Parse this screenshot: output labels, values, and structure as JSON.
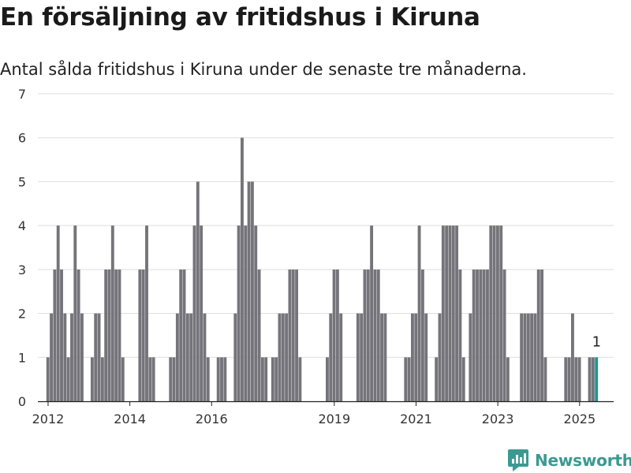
{
  "title": "En försäljning av fritidshus i Kiruna",
  "subtitle": "Antal sålda fritidshus i Kiruna under de senaste tre månaderna.",
  "brand": "Newsworthy",
  "colors": {
    "bar": "#75747a",
    "highlight": "#159a8c",
    "grid": "#dddddd",
    "brand": "#3a9a92"
  },
  "chart_data": {
    "type": "bar",
    "title": "En försäljning av fritidshus i Kiruna",
    "subtitle": "Antal sålda fritidshus i Kiruna under de senaste tre månaderna.",
    "xlabel": "",
    "ylabel": "",
    "ylim": [
      0,
      7
    ],
    "x_range": [
      "2011-10",
      "2025-11"
    ],
    "y_ticks": [
      0,
      1,
      2,
      3,
      4,
      5,
      6,
      7
    ],
    "x_ticks": [
      "2012",
      "2014",
      "2016",
      "2019",
      "2021",
      "2023",
      "2025"
    ],
    "grid": true,
    "series": [
      {
        "values": [
          [
            "2012-01",
            1
          ],
          [
            "2012-02",
            2
          ],
          [
            "2012-03",
            3
          ],
          [
            "2012-04",
            4
          ],
          [
            "2012-05",
            3
          ],
          [
            "2012-06",
            2
          ],
          [
            "2012-07",
            1
          ],
          [
            "2012-08",
            2
          ],
          [
            "2012-09",
            4
          ],
          [
            "2012-10",
            3
          ],
          [
            "2012-11",
            2
          ],
          [
            "2013-02",
            1
          ],
          [
            "2013-03",
            2
          ],
          [
            "2013-04",
            2
          ],
          [
            "2013-05",
            1
          ],
          [
            "2013-06",
            3
          ],
          [
            "2013-07",
            3
          ],
          [
            "2013-08",
            4
          ],
          [
            "2013-09",
            3
          ],
          [
            "2013-10",
            3
          ],
          [
            "2013-11",
            1
          ],
          [
            "2014-04",
            3
          ],
          [
            "2014-05",
            3
          ],
          [
            "2014-06",
            4
          ],
          [
            "2014-07",
            1
          ],
          [
            "2014-08",
            1
          ],
          [
            "2015-01",
            1
          ],
          [
            "2015-02",
            1
          ],
          [
            "2015-03",
            2
          ],
          [
            "2015-04",
            3
          ],
          [
            "2015-05",
            3
          ],
          [
            "2015-06",
            2
          ],
          [
            "2015-07",
            2
          ],
          [
            "2015-08",
            4
          ],
          [
            "2015-09",
            5
          ],
          [
            "2015-10",
            4
          ],
          [
            "2015-11",
            2
          ],
          [
            "2015-12",
            1
          ],
          [
            "2016-03",
            1
          ],
          [
            "2016-04",
            1
          ],
          [
            "2016-05",
            1
          ],
          [
            "2016-08",
            2
          ],
          [
            "2016-09",
            4
          ],
          [
            "2016-10",
            6
          ],
          [
            "2016-11",
            4
          ],
          [
            "2016-12",
            5
          ],
          [
            "2017-01",
            5
          ],
          [
            "2017-02",
            4
          ],
          [
            "2017-03",
            3
          ],
          [
            "2017-04",
            1
          ],
          [
            "2017-05",
            1
          ],
          [
            "2017-07",
            1
          ],
          [
            "2017-08",
            1
          ],
          [
            "2017-09",
            2
          ],
          [
            "2017-10",
            2
          ],
          [
            "2017-11",
            2
          ],
          [
            "2017-12",
            3
          ],
          [
            "2018-01",
            3
          ],
          [
            "2018-02",
            3
          ],
          [
            "2018-03",
            1
          ],
          [
            "2018-11",
            1
          ],
          [
            "2018-12",
            2
          ],
          [
            "2019-01",
            3
          ],
          [
            "2019-02",
            3
          ],
          [
            "2019-03",
            2
          ],
          [
            "2019-08",
            2
          ],
          [
            "2019-09",
            2
          ],
          [
            "2019-10",
            3
          ],
          [
            "2019-11",
            3
          ],
          [
            "2019-12",
            4
          ],
          [
            "2020-01",
            3
          ],
          [
            "2020-02",
            3
          ],
          [
            "2020-03",
            2
          ],
          [
            "2020-04",
            2
          ],
          [
            "2020-10",
            1
          ],
          [
            "2020-11",
            1
          ],
          [
            "2020-12",
            2
          ],
          [
            "2021-01",
            2
          ],
          [
            "2021-02",
            4
          ],
          [
            "2021-03",
            3
          ],
          [
            "2021-04",
            2
          ],
          [
            "2021-07",
            1
          ],
          [
            "2021-08",
            2
          ],
          [
            "2021-09",
            4
          ],
          [
            "2021-10",
            4
          ],
          [
            "2021-11",
            4
          ],
          [
            "2021-12",
            4
          ],
          [
            "2022-01",
            4
          ],
          [
            "2022-02",
            3
          ],
          [
            "2022-03",
            1
          ],
          [
            "2022-05",
            2
          ],
          [
            "2022-06",
            3
          ],
          [
            "2022-07",
            3
          ],
          [
            "2022-08",
            3
          ],
          [
            "2022-09",
            3
          ],
          [
            "2022-10",
            3
          ],
          [
            "2022-11",
            4
          ],
          [
            "2022-12",
            4
          ],
          [
            "2023-01",
            4
          ],
          [
            "2023-02",
            4
          ],
          [
            "2023-03",
            3
          ],
          [
            "2023-04",
            1
          ],
          [
            "2023-08",
            2
          ],
          [
            "2023-09",
            2
          ],
          [
            "2023-10",
            2
          ],
          [
            "2023-11",
            2
          ],
          [
            "2023-12",
            2
          ],
          [
            "2024-01",
            3
          ],
          [
            "2024-02",
            3
          ],
          [
            "2024-03",
            1
          ],
          [
            "2024-09",
            1
          ],
          [
            "2024-10",
            1
          ],
          [
            "2024-11",
            2
          ],
          [
            "2024-12",
            1
          ],
          [
            "2025-01",
            1
          ],
          [
            "2025-04",
            1
          ],
          [
            "2025-05",
            1
          ],
          [
            "2025-06",
            1
          ]
        ]
      }
    ],
    "highlight": {
      "x": "2025-06",
      "value": 1,
      "label": "1"
    }
  }
}
